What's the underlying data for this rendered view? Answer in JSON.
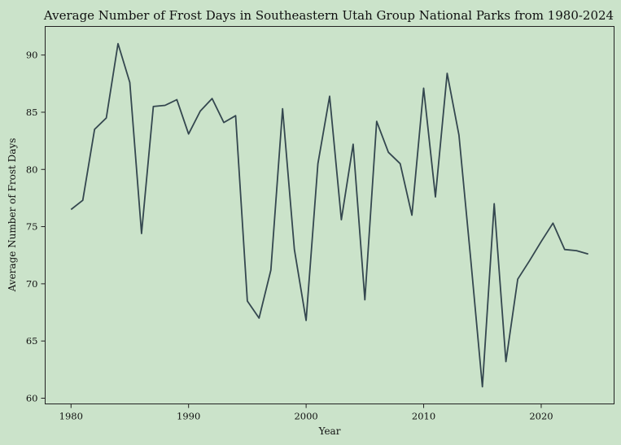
{
  "chart_data": {
    "type": "line",
    "title": "Average Number of Frost Days in Southeastern Utah Group National Parks from 1980-2024",
    "xlabel": "Year",
    "ylabel": "Average Number of Frost Days",
    "xlim": [
      1977.8,
      2026.2
    ],
    "ylim": [
      59.5,
      92.5
    ],
    "xticks": [
      1980,
      1990,
      2000,
      2010,
      2020
    ],
    "yticks": [
      60,
      65,
      70,
      75,
      80,
      85,
      90
    ],
    "grid": false,
    "colors": {
      "line": "#34474f",
      "background": "#cbe3ca"
    },
    "series": [
      {
        "x": [
          1980,
          1981,
          1982,
          1983,
          1984,
          1985,
          1986,
          1987,
          1988,
          1989,
          1990,
          1991,
          1992,
          1993,
          1994,
          1995,
          1996,
          1997,
          1998,
          1999,
          2000,
          2001,
          2002,
          2003,
          2004,
          2005,
          2006,
          2007,
          2008,
          2009,
          2010,
          2011,
          2012,
          2013,
          2014,
          2015,
          2016,
          2017,
          2018,
          2019,
          2020,
          2021,
          2022,
          2023,
          2024
        ],
        "y": [
          76.5,
          77.3,
          83.5,
          84.5,
          91.0,
          87.6,
          74.4,
          85.5,
          85.6,
          86.1,
          83.1,
          85.1,
          86.2,
          84.1,
          84.7,
          68.5,
          67.0,
          71.2,
          85.3,
          73.0,
          66.8,
          80.5,
          86.4,
          75.6,
          82.2,
          68.6,
          84.2,
          81.5,
          80.5,
          76.0,
          87.1,
          77.6,
          88.4,
          83.0,
          72.2,
          61.0,
          77.0,
          63.2,
          70.4,
          72.0,
          73.7,
          75.3,
          73.0,
          72.9,
          72.6
        ]
      }
    ]
  }
}
